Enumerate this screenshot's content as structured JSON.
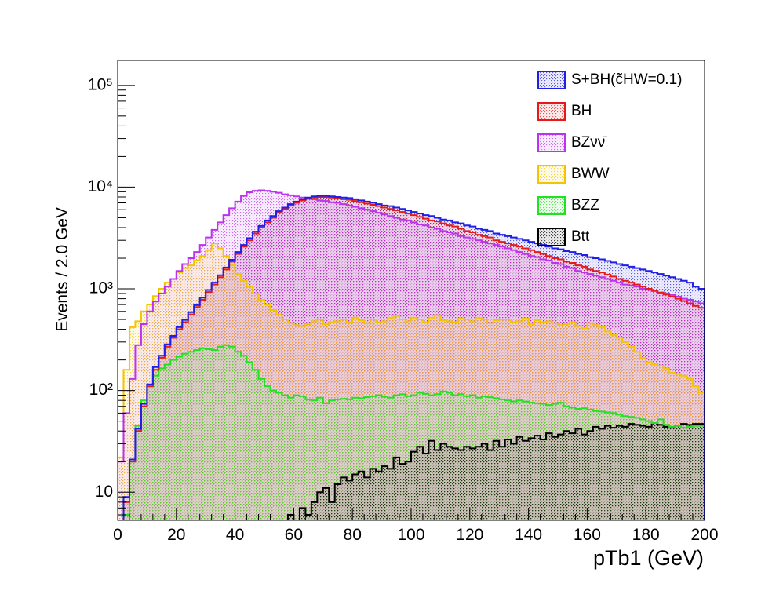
{
  "chart_data": {
    "type": "histogram",
    "x_label": "pTb1 (GeV)",
    "y_label": "Events / 2.0 GeV",
    "bins": [
      0,
      2,
      4,
      6,
      8,
      10,
      12,
      14,
      16,
      18,
      20,
      22,
      24,
      26,
      28,
      30,
      32,
      34,
      36,
      38,
      40,
      42,
      44,
      46,
      48,
      50,
      52,
      54,
      56,
      58,
      60,
      62,
      64,
      66,
      68,
      70,
      72,
      74,
      76,
      78,
      80,
      82,
      84,
      86,
      88,
      90,
      92,
      94,
      96,
      98,
      100,
      102,
      104,
      106,
      108,
      110,
      112,
      114,
      116,
      118,
      120,
      122,
      124,
      126,
      128,
      130,
      132,
      134,
      136,
      138,
      140,
      142,
      144,
      146,
      148,
      150,
      152,
      154,
      156,
      158,
      160,
      162,
      164,
      166,
      168,
      170,
      172,
      174,
      176,
      178,
      180,
      182,
      184,
      186,
      188,
      190,
      192,
      194,
      196,
      198,
      200
    ],
    "xlim": [
      0,
      200
    ],
    "xticks": [
      0,
      20,
      40,
      60,
      80,
      100,
      120,
      140,
      160,
      180,
      200
    ],
    "ylim": [
      5.3,
      176000
    ],
    "yticks": [
      10,
      {
        "value": 100,
        "label": "10²"
      },
      {
        "value": 1000,
        "label": "10³"
      },
      {
        "value": 10000,
        "label": "10⁴"
      },
      {
        "value": 100000,
        "label": "10⁵"
      }
    ],
    "log_y": true,
    "legend": "top-right",
    "series": [
      {
        "name": "S+BH(c̃HW=0.1)",
        "color": "#1f1fe6",
        "values": [
          5,
          9,
          21,
          42,
          74,
          115,
          170,
          220,
          285,
          345,
          420,
          495,
          590,
          690,
          820,
          975,
          1150,
          1360,
          1620,
          1930,
          2300,
          2700,
          3150,
          3650,
          4150,
          4700,
          5200,
          5800,
          6300,
          6800,
          7200,
          7600,
          7900,
          8100,
          8200,
          8200,
          8100,
          8000,
          7900,
          7800,
          7600,
          7400,
          7200,
          7000,
          6800,
          6600,
          6500,
          6300,
          6100,
          5900,
          5700,
          5500,
          5300,
          5200,
          5000,
          4800,
          4700,
          4500,
          4400,
          4200,
          4100,
          3900,
          3800,
          3700,
          3500,
          3400,
          3300,
          3200,
          3100,
          3000,
          2900,
          2800,
          2700,
          2600,
          2500,
          2450,
          2350,
          2300,
          2200,
          2150,
          2050,
          2000,
          1950,
          1880,
          1820,
          1750,
          1700,
          1650,
          1600,
          1550,
          1500,
          1450,
          1400,
          1350,
          1300,
          1250,
          1200,
          1150,
          1050,
          1000
        ]
      },
      {
        "name": "BH",
        "color": "#e61a1a",
        "values": [
          5,
          8,
          20,
          40,
          70,
          110,
          160,
          210,
          270,
          330,
          400,
          470,
          560,
          660,
          780,
          930,
          1100,
          1300,
          1550,
          1850,
          2200,
          2600,
          3000,
          3500,
          4000,
          4500,
          5000,
          5600,
          6100,
          6600,
          7000,
          7400,
          7700,
          7900,
          8000,
          8000,
          7900,
          7800,
          7600,
          7500,
          7300,
          7100,
          6900,
          6700,
          6500,
          6300,
          6100,
          5900,
          5700,
          5500,
          5300,
          5100,
          4900,
          4700,
          4600,
          4400,
          4200,
          4100,
          3900,
          3700,
          3600,
          3400,
          3300,
          3200,
          3000,
          2900,
          2800,
          2700,
          2600,
          2500,
          2400,
          2300,
          2200,
          2100,
          2000,
          1950,
          1850,
          1800,
          1700,
          1650,
          1550,
          1500,
          1450,
          1380,
          1320,
          1250,
          1200,
          1150,
          1100,
          1050,
          1000,
          960,
          920,
          880,
          840,
          800,
          760,
          720,
          680,
          650
        ]
      },
      {
        "name": "BZνν̄",
        "color": "#bb33ee",
        "values": [
          20,
          60,
          130,
          280,
          450,
          600,
          750,
          900,
          1050,
          1250,
          1500,
          1750,
          2000,
          2300,
          2700,
          3200,
          3800,
          4500,
          5300,
          6200,
          7200,
          8200,
          8900,
          9200,
          9300,
          9200,
          9000,
          8800,
          8500,
          8300,
          8100,
          7900,
          7700,
          7600,
          7400,
          7300,
          7100,
          7000,
          6800,
          6600,
          6400,
          6200,
          6000,
          5800,
          5600,
          5400,
          5200,
          5000,
          4800,
          4700,
          4500,
          4300,
          4200,
          4000,
          3900,
          3700,
          3600,
          3500,
          3300,
          3200,
          3100,
          3000,
          2900,
          2800,
          2700,
          2600,
          2500,
          2400,
          2300,
          2200,
          2100,
          2050,
          1950,
          1900,
          1800,
          1750,
          1650,
          1600,
          1500,
          1450,
          1400,
          1350,
          1300,
          1250,
          1200,
          1150,
          1100,
          1080,
          1050,
          1000,
          980,
          950,
          920,
          900,
          870,
          840,
          800,
          780,
          750,
          720
        ]
      },
      {
        "name": "BWW",
        "color": "#f5c400",
        "values": [
          22,
          160,
          420,
          480,
          600,
          700,
          850,
          1000,
          1150,
          1250,
          1450,
          1600,
          1700,
          1900,
          2100,
          2400,
          2800,
          2500,
          2100,
          1700,
          1400,
          1200,
          1050,
          900,
          780,
          700,
          620,
          560,
          500,
          460,
          440,
          430,
          450,
          480,
          500,
          450,
          470,
          480,
          500,
          470,
          520,
          490,
          460,
          500,
          470,
          480,
          520,
          540,
          500,
          480,
          520,
          500,
          470,
          520,
          550,
          490,
          480,
          470,
          510,
          500,
          480,
          520,
          500,
          460,
          490,
          500,
          500,
          470,
          480,
          510,
          450,
          490,
          470,
          480,
          460,
          440,
          450,
          470,
          430,
          410,
          460,
          440,
          420,
          380,
          350,
          330,
          300,
          270,
          240,
          210,
          190,
          180,
          175,
          165,
          150,
          145,
          140,
          130,
          110,
          95
        ]
      },
      {
        "name": "BZZ",
        "color": "#22e022",
        "values": [
          0,
          6,
          20,
          45,
          80,
          110,
          140,
          165,
          180,
          200,
          215,
          230,
          240,
          250,
          260,
          255,
          250,
          270,
          280,
          270,
          240,
          220,
          190,
          160,
          130,
          110,
          100,
          95,
          90,
          85,
          90,
          88,
          82,
          80,
          85,
          75,
          80,
          82,
          83,
          82,
          85,
          84,
          86,
          88,
          90,
          87,
          85,
          90,
          92,
          88,
          90,
          95,
          93,
          90,
          92,
          98,
          95,
          90,
          92,
          88,
          90,
          85,
          88,
          86,
          84,
          82,
          80,
          78,
          80,
          78,
          76,
          75,
          74,
          72,
          74,
          76,
          70,
          68,
          66,
          67,
          65,
          63,
          62,
          61,
          60,
          58,
          56,
          55,
          54,
          52,
          50,
          48,
          52,
          46,
          44,
          45,
          43,
          44,
          45,
          45
        ]
      },
      {
        "name": "Btt",
        "color": "#000000",
        "values": [
          0,
          0,
          0,
          0,
          0,
          0,
          0,
          0,
          0,
          0,
          0,
          0,
          0,
          0,
          0,
          0,
          0,
          0,
          0,
          0,
          0,
          0,
          0,
          0,
          0,
          0,
          0,
          0,
          0,
          6,
          5,
          7,
          6,
          8,
          10,
          11,
          8,
          12,
          14,
          13,
          15,
          16,
          14,
          17,
          16,
          18,
          17,
          22,
          19,
          20,
          25,
          28,
          24,
          32,
          26,
          30,
          28,
          27,
          26,
          28,
          27,
          28,
          30,
          26,
          32,
          28,
          33,
          30,
          35,
          32,
          34,
          36,
          33,
          38,
          35,
          37,
          40,
          38,
          42,
          37,
          40,
          44,
          42,
          45,
          43,
          45,
          44,
          47,
          46,
          45,
          44,
          48,
          46,
          44,
          43,
          45,
          47,
          46,
          47,
          47
        ]
      }
    ]
  }
}
